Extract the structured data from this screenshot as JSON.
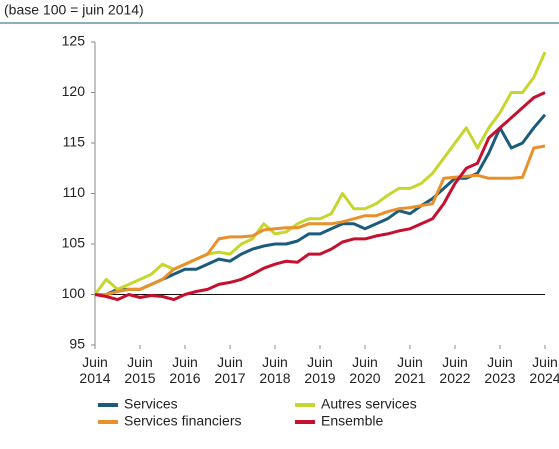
{
  "chart_data": {
    "type": "line",
    "subtitle": "(base 100 = juin 2014)",
    "x": [
      2014.5,
      2014.75,
      2015,
      2015.25,
      2015.5,
      2015.75,
      2016,
      2016.25,
      2016.5,
      2016.75,
      2017,
      2017.25,
      2017.5,
      2017.75,
      2018,
      2018.25,
      2018.5,
      2018.75,
      2019,
      2019.25,
      2019.5,
      2019.75,
      2020,
      2020.25,
      2020.5,
      2020.75,
      2021,
      2021.25,
      2021.5,
      2021.75,
      2022,
      2022.25,
      2022.5,
      2022.75,
      2023,
      2023.25,
      2023.5,
      2023.75,
      2024,
      2024.25,
      2024.5
    ],
    "series": [
      {
        "name": "Services",
        "color": "#1b5c7d",
        "values": [
          100,
          100,
          100.5,
          100.5,
          100.5,
          101,
          101.5,
          102,
          102.5,
          102.5,
          103,
          103.5,
          103.3,
          104,
          104.5,
          104.8,
          105,
          105,
          105.3,
          106,
          106,
          106.5,
          107,
          107,
          106.5,
          107,
          107.5,
          108.3,
          108,
          108.8,
          109.5,
          110.5,
          111.5,
          111.5,
          112,
          114,
          116.5,
          114.5,
          115,
          116.5,
          117.8
        ]
      },
      {
        "name": "Autres services",
        "color": "#c6d62e",
        "values": [
          100,
          101.5,
          100.5,
          101,
          101.5,
          102,
          103,
          102.5,
          103,
          103.5,
          104,
          104.2,
          104,
          105,
          105.5,
          107,
          106,
          106.2,
          107,
          107.5,
          107.5,
          108,
          110,
          108.5,
          108.5,
          109,
          109.8,
          110.5,
          110.5,
          111,
          112,
          113.5,
          115,
          116.5,
          114.5,
          116.5,
          118,
          120,
          120,
          121.5,
          124
        ]
      },
      {
        "name": "Services financiers",
        "color": "#e8912c",
        "values": [
          100,
          100,
          100.3,
          100.5,
          100.5,
          101,
          101.5,
          102.5,
          103,
          103.5,
          104,
          105.5,
          105.7,
          105.7,
          105.8,
          106.4,
          106.5,
          106.6,
          106.6,
          107,
          107,
          107,
          107.2,
          107.5,
          107.8,
          107.8,
          108.2,
          108.5,
          108.6,
          108.8,
          109,
          111.5,
          111.6,
          111.7,
          111.8,
          111.5,
          111.5,
          111.5,
          111.6,
          114.5,
          114.7
        ]
      },
      {
        "name": "Ensemble",
        "color": "#c5102f",
        "values": [
          100,
          99.8,
          99.5,
          100,
          99.7,
          99.9,
          99.8,
          99.5,
          100,
          100.3,
          100.5,
          101,
          101.2,
          101.5,
          102,
          102.6,
          103,
          103.3,
          103.2,
          104,
          104,
          104.5,
          105.2,
          105.5,
          105.5,
          105.8,
          106,
          106.3,
          106.5,
          107,
          107.5,
          109,
          111,
          112.5,
          113,
          115.5,
          116.5,
          117.5,
          118.5,
          119.5,
          120
        ]
      }
    ],
    "reference_line": 100,
    "xlim": [
      2014.5,
      2024.5
    ],
    "xticks": [
      {
        "value": 2014.5,
        "label": "Juin 2014"
      },
      {
        "value": 2015.5,
        "label": "Juin 2015"
      },
      {
        "value": 2016.5,
        "label": "Juin 2016"
      },
      {
        "value": 2017.5,
        "label": "Juin 2017"
      },
      {
        "value": 2018.5,
        "label": "Juin 2018"
      },
      {
        "value": 2019.5,
        "label": "Juin 2019"
      },
      {
        "value": 2020.5,
        "label": "Juin 2020"
      },
      {
        "value": 2021.5,
        "label": "Juin 2021"
      },
      {
        "value": 2022.5,
        "label": "Juin 2022"
      },
      {
        "value": 2023.5,
        "label": "Juin 2023"
      },
      {
        "value": 2024.5,
        "label": "Juin 2024"
      }
    ],
    "ylim": [
      95,
      125
    ],
    "yticks": [
      95,
      100,
      105,
      110,
      115,
      120,
      125
    ]
  }
}
